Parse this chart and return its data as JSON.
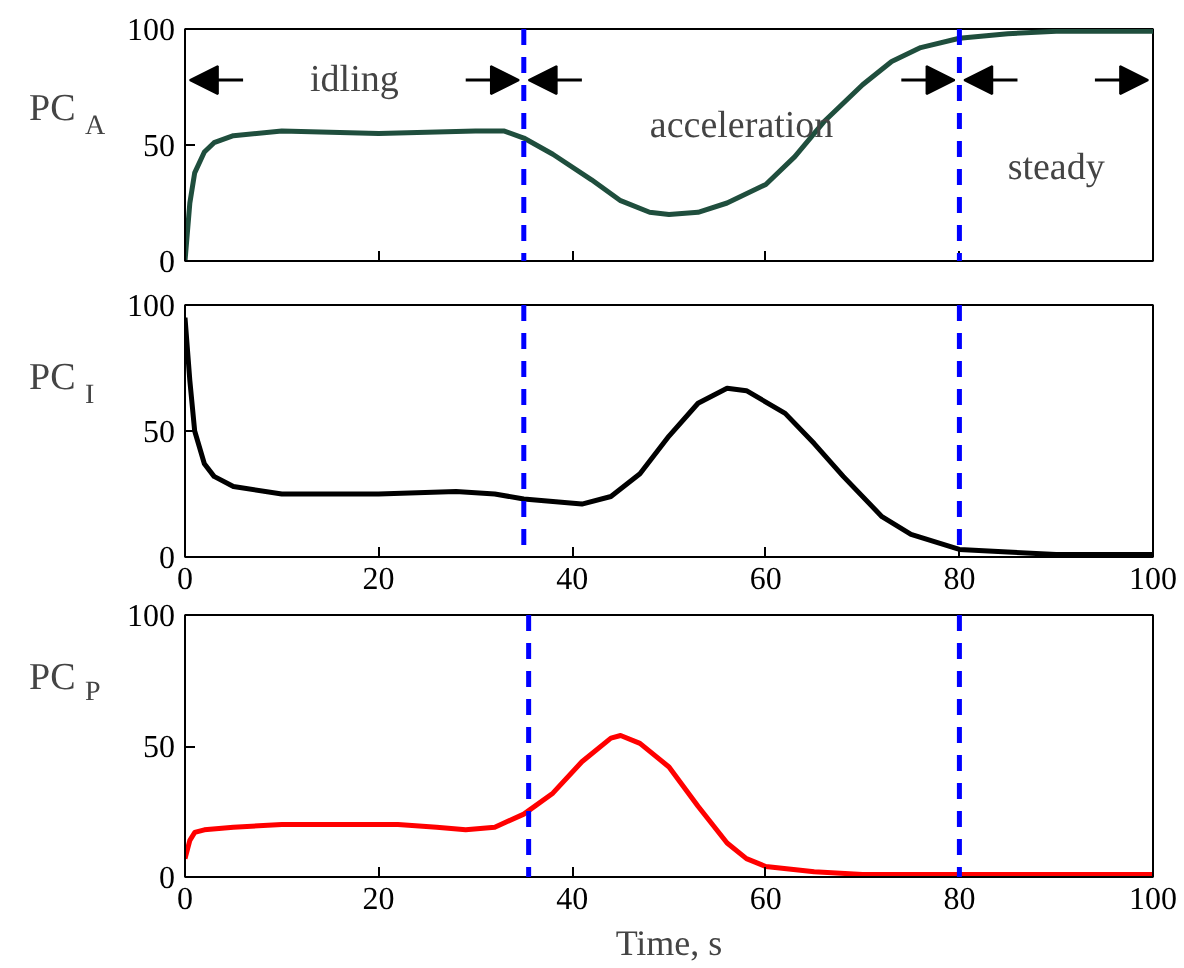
{
  "chart_data": [
    {
      "type": "line",
      "ylabel": "PC$_{A}$",
      "xlim": [
        0,
        100
      ],
      "ylim": [
        0,
        100
      ],
      "xticks": [
        {
          "value": 0,
          "label": null
        },
        {
          "value": 20,
          "label": null
        },
        {
          "value": 40,
          "label": null
        },
        {
          "value": 60,
          "label": null
        },
        {
          "value": 80,
          "label": null
        },
        {
          "value": 100,
          "label": null
        }
      ],
      "yticks": [
        0,
        50,
        100
      ],
      "tick_labels": "y",
      "grid": false,
      "line_style": "solid",
      "series": [
        {
          "color": "#1f4e3d",
          "x": [
            0,
            0.5,
            1,
            2,
            3,
            5,
            10,
            20,
            30,
            33,
            35,
            38,
            42,
            45,
            48,
            50,
            53,
            56,
            60,
            63,
            66,
            70,
            73,
            76,
            80,
            85,
            90,
            100
          ],
          "values": [
            0,
            25,
            38,
            47,
            51,
            54,
            56,
            55,
            56,
            56,
            53,
            46,
            35,
            26,
            21,
            20,
            21,
            25,
            33,
            45,
            60,
            76,
            86,
            92,
            96,
            98,
            99,
            99
          ]
        }
      ],
      "ref_lines": [
        {
          "axis": "x",
          "value": 35,
          "color": "#0000ff",
          "line_style": "dashed"
        },
        {
          "axis": "x",
          "value": 80,
          "color": "#0000ff",
          "line_style": "dashed"
        }
      ],
      "annotations": [
        "idling",
        "acceleration",
        "steady"
      ]
    },
    {
      "type": "line",
      "ylabel": "PC$_{I}$",
      "xlim": [
        0,
        100
      ],
      "ylim": [
        0,
        100
      ],
      "xticks": [
        0,
        20,
        40,
        60,
        80,
        100
      ],
      "yticks": [
        0,
        50,
        100
      ],
      "grid": false,
      "line_style": "solid",
      "series": [
        {
          "color": "#000000",
          "x": [
            0,
            0.5,
            1,
            2,
            3,
            5,
            10,
            20,
            28,
            32,
            35,
            38,
            41,
            44,
            47,
            50,
            53,
            56,
            58,
            62,
            65,
            68,
            72,
            75,
            80,
            85,
            90,
            100
          ],
          "values": [
            95,
            70,
            50,
            37,
            32,
            28,
            25,
            25,
            26,
            25,
            23,
            22,
            21,
            24,
            33,
            48,
            61,
            67,
            66,
            57,
            45,
            32,
            16,
            9,
            3,
            2,
            1,
            1
          ]
        }
      ],
      "ref_lines": [
        {
          "axis": "x",
          "value": 35,
          "color": "#0000ff",
          "line_style": "dashed"
        },
        {
          "axis": "x",
          "value": 80,
          "color": "#0000ff",
          "line_style": "dashed"
        }
      ]
    },
    {
      "type": "line",
      "ylabel": "PC$_{P}$",
      "xlabel": "Time, s",
      "xlim": [
        0,
        100
      ],
      "ylim": [
        0,
        100
      ],
      "xticks": [
        0,
        20,
        40,
        60,
        80,
        100
      ],
      "yticks": [
        0,
        50,
        100
      ],
      "grid": false,
      "line_style": "solid",
      "series": [
        {
          "color": "#ff0000",
          "x": [
            0,
            0.5,
            1,
            2,
            5,
            10,
            22,
            26,
            29,
            32,
            35,
            38,
            41,
            44,
            45,
            47,
            50,
            53,
            56,
            58,
            60,
            65,
            70,
            100
          ],
          "values": [
            7,
            14,
            17,
            18,
            19,
            20,
            20,
            19,
            18,
            19,
            24,
            32,
            44,
            53,
            54,
            51,
            42,
            27,
            13,
            7,
            4,
            2,
            1,
            1
          ]
        }
      ],
      "ref_lines": [
        {
          "axis": "x",
          "value": 35.5,
          "color": "#0000ff",
          "line_style": "dashed"
        },
        {
          "axis": "x",
          "value": 80,
          "color": "#0000ff",
          "line_style": "dashed"
        }
      ]
    }
  ]
}
